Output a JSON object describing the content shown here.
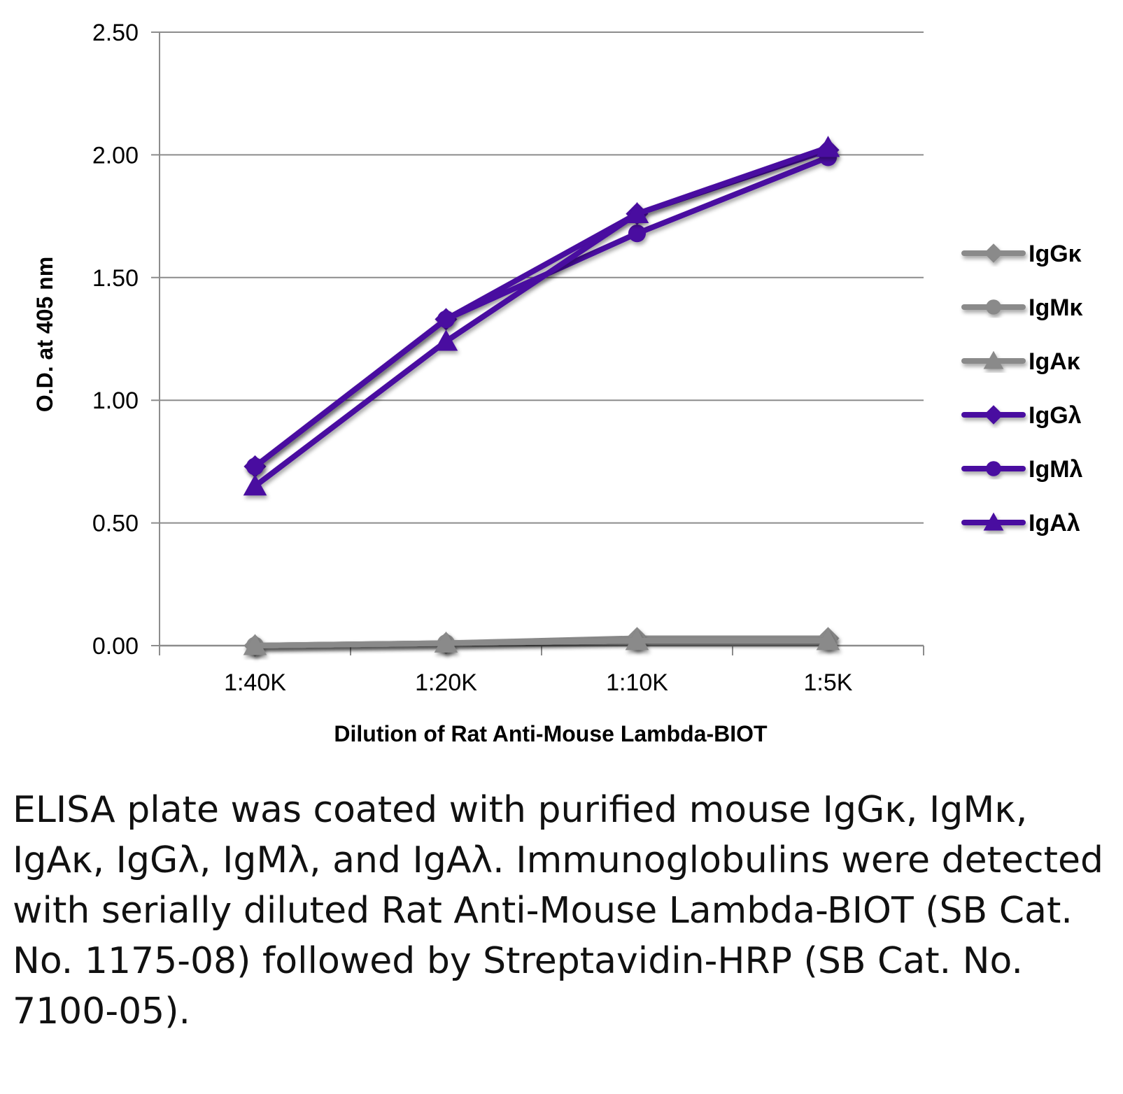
{
  "chart_data": {
    "type": "line",
    "title": "",
    "xlabel": "Dilution of Rat Anti-Mouse Lambda-BIOT",
    "ylabel": "O.D. at 405 nm",
    "categories": [
      "1:40K",
      "1:20K",
      "1:10K",
      "1:5K"
    ],
    "ylim": [
      0,
      2.5
    ],
    "yticks": [
      "0.00",
      "0.50",
      "1.00",
      "1.50",
      "2.00",
      "2.50"
    ],
    "ytick_values": [
      0,
      0.5,
      1.0,
      1.5,
      2.0,
      2.5
    ],
    "grid": true,
    "legend_position": "right",
    "series": [
      {
        "name": "IgGκ",
        "marker": "diamond",
        "color": "#8a8a8a",
        "values": [
          0.0,
          0.01,
          0.03,
          0.03
        ]
      },
      {
        "name": "IgMκ",
        "marker": "circle",
        "color": "#8a8a8a",
        "values": [
          0.0,
          0.01,
          0.02,
          0.02
        ]
      },
      {
        "name": "IgAκ",
        "marker": "triangle",
        "color": "#8a8a8a",
        "values": [
          0.0,
          0.01,
          0.02,
          0.02
        ]
      },
      {
        "name": "IgGλ",
        "marker": "diamond",
        "color": "#4a0da0",
        "values": [
          0.73,
          1.33,
          1.76,
          2.02
        ]
      },
      {
        "name": "IgMλ",
        "marker": "circle",
        "color": "#4a0da0",
        "values": [
          0.73,
          1.33,
          1.68,
          1.99
        ]
      },
      {
        "name": "IgAλ",
        "marker": "triangle",
        "color": "#4a0da0",
        "values": [
          0.65,
          1.24,
          1.76,
          2.03
        ]
      }
    ]
  },
  "caption": "ELISA plate was coated with purified mouse IgGκ, IgMκ, IgAκ, IgGλ, IgMλ, and IgAλ. Immunoglobulins were detected with serially diluted Rat Anti-Mouse Lambda-BIOT (SB Cat. No. 1175-08) followed by Streptavidin-HRP (SB Cat. No. 7100-05)."
}
